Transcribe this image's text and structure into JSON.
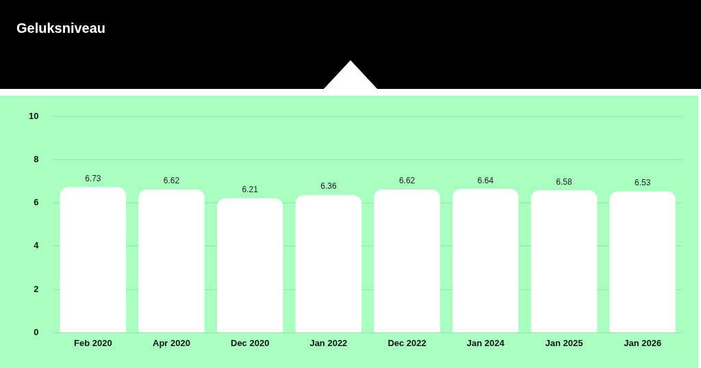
{
  "chart_data": {
    "type": "bar",
    "title": "Geluksniveau",
    "categories": [
      "Feb 2020",
      "Apr 2020",
      "Dec 2020",
      "Jan 2022",
      "Dec 2022",
      "Jan 2024",
      "Jan 2025",
      "Jan 2026"
    ],
    "values": [
      6.73,
      6.62,
      6.21,
      6.36,
      6.62,
      6.64,
      6.58,
      6.53
    ],
    "color": "#ffffff",
    "ylim": [
      0,
      10
    ],
    "yticks": [
      0,
      2,
      4,
      6,
      8,
      10
    ],
    "grid": "y",
    "data_labels": true
  }
}
